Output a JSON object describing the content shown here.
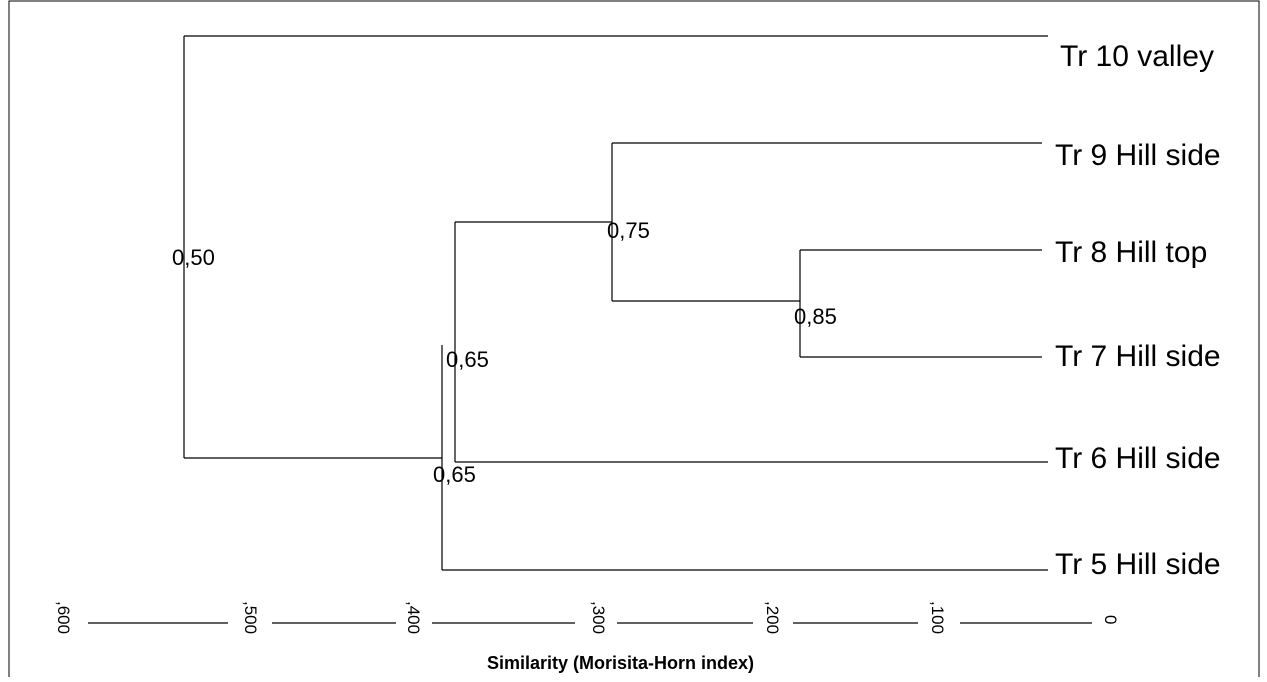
{
  "dendrogram": {
    "leaves": [
      "Tr 10 valley",
      "Tr 9 Hill side",
      "Tr 8 Hill top",
      "Tr 7 Hill side",
      "Tr 6 Hill side",
      "Tr 5 Hill side"
    ],
    "node_labels": [
      "0,50",
      "0,75",
      "0,85",
      "0,65",
      "0,65"
    ]
  },
  "axis": {
    "title": "Similarity (Morisita-Horn index)",
    "ticks": [
      ",600",
      ",500",
      ",400",
      ",300",
      ",200",
      ",100",
      "0"
    ]
  }
}
